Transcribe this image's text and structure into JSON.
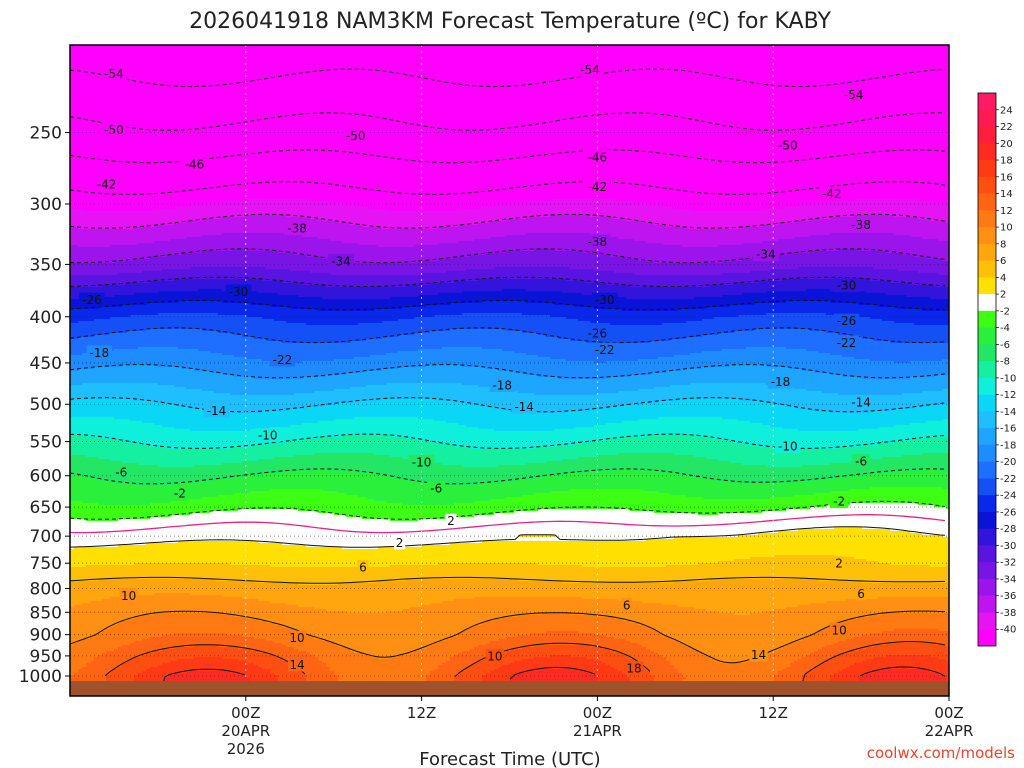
{
  "chart_data": {
    "type": "heatmap",
    "title": "2026041918 NAM3KM Forecast Temperature (ºC) for KABY",
    "xlabel": "Forecast Time (UTC)",
    "ylabel": "",
    "y_axis": {
      "scale": "log-pressure",
      "ylim_hPa": [
        1000,
        200
      ],
      "ticks": [
        "250",
        "300",
        "350",
        "400",
        "450",
        "500",
        "550",
        "600",
        "650",
        "700",
        "750",
        "800",
        "850",
        "900",
        "950",
        "1000"
      ]
    },
    "x_axis": {
      "xlim_hours": [
        -6,
        54
      ],
      "ticks": [
        {
          "hour": 6,
          "line1": "00Z",
          "line2": "20APR",
          "line3": "2026"
        },
        {
          "hour": 18,
          "line1": "12Z",
          "line2": "",
          "line3": ""
        },
        {
          "hour": 30,
          "line1": "00Z",
          "line2": "21APR",
          "line3": ""
        },
        {
          "hour": 42,
          "line1": "12Z",
          "line2": "",
          "line3": ""
        },
        {
          "hour": 54,
          "line1": "00Z",
          "line2": "22APR",
          "line3": ""
        }
      ]
    },
    "colorbar": {
      "labels": [
        "24",
        "22",
        "20",
        "18",
        "16",
        "14",
        "12",
        "10",
        "8",
        "6",
        "4",
        "2",
        "-2",
        "-4",
        "-6",
        "-8",
        "-10",
        "-12",
        "-14",
        "-16",
        "-18",
        "-20",
        "-22",
        "-24",
        "-26",
        "-28",
        "-30",
        "-32",
        "-34",
        "-36",
        "-38",
        "-40"
      ],
      "bands": [
        {
          "from": 24,
          "to": 26,
          "color": "#ff1a66"
        },
        {
          "from": 22,
          "to": 24,
          "color": "#ff1a52"
        },
        {
          "from": 20,
          "to": 22,
          "color": "#ff1e3c"
        },
        {
          "from": 18,
          "to": 20,
          "color": "#ff2a22"
        },
        {
          "from": 16,
          "to": 18,
          "color": "#ff3a14"
        },
        {
          "from": 14,
          "to": 16,
          "color": "#ff4e12"
        },
        {
          "from": 12,
          "to": 14,
          "color": "#ff6414"
        },
        {
          "from": 10,
          "to": 12,
          "color": "#ff7a12"
        },
        {
          "from": 8,
          "to": 10,
          "color": "#ff9014"
        },
        {
          "from": 6,
          "to": 8,
          "color": "#ffa60e"
        },
        {
          "from": 4,
          "to": 6,
          "color": "#ffc00a"
        },
        {
          "from": 2,
          "to": 4,
          "color": "#ffe000"
        },
        {
          "from": -2,
          "to": 2,
          "color": "#ffffff"
        },
        {
          "from": -4,
          "to": -2,
          "color": "#3cff14"
        },
        {
          "from": -6,
          "to": -4,
          "color": "#2af03c"
        },
        {
          "from": -8,
          "to": -6,
          "color": "#22e664"
        },
        {
          "from": -10,
          "to": -8,
          "color": "#14f0a0"
        },
        {
          "from": -12,
          "to": -10,
          "color": "#0ff0dc"
        },
        {
          "from": -14,
          "to": -12,
          "color": "#0ad7f5"
        },
        {
          "from": -16,
          "to": -14,
          "color": "#1ebeff"
        },
        {
          "from": -18,
          "to": -16,
          "color": "#1ea5ff"
        },
        {
          "from": -20,
          "to": -18,
          "color": "#1e8cff"
        },
        {
          "from": -22,
          "to": -20,
          "color": "#1e6eff"
        },
        {
          "from": -24,
          "to": -22,
          "color": "#1450f5"
        },
        {
          "from": -26,
          "to": -24,
          "color": "#0a28eb"
        },
        {
          "from": -28,
          "to": -26,
          "color": "#0a14d7"
        },
        {
          "from": -30,
          "to": -28,
          "color": "#3214dc"
        },
        {
          "from": -32,
          "to": -30,
          "color": "#5a14e1"
        },
        {
          "from": -34,
          "to": -32,
          "color": "#7814e6"
        },
        {
          "from": -36,
          "to": -34,
          "color": "#9b14eb"
        },
        {
          "from": -38,
          "to": -36,
          "color": "#be14f0"
        },
        {
          "from": -40,
          "to": -38,
          "color": "#e614f5"
        },
        {
          "from": -70,
          "to": -40,
          "color": "#ff00ff"
        }
      ]
    },
    "series": [
      {
        "name": "ground",
        "color": "#a0522d"
      },
      {
        "name": "freezing level (0ºC)",
        "color": "#e8228c"
      }
    ],
    "temperature_profile_C": [
      {
        "p": 1000,
        "t": 15
      },
      {
        "p": 950,
        "t": 13
      },
      {
        "p": 900,
        "t": 10.5
      },
      {
        "p": 850,
        "t": 9
      },
      {
        "p": 800,
        "t": 7
      },
      {
        "p": 750,
        "t": 4
      },
      {
        "p": 700,
        "t": 2
      },
      {
        "p": 650,
        "t": -2.5
      },
      {
        "p": 600,
        "t": -6
      },
      {
        "p": 550,
        "t": -10
      },
      {
        "p": 500,
        "t": -14
      },
      {
        "p": 450,
        "t": -19
      },
      {
        "p": 400,
        "t": -24
      },
      {
        "p": 350,
        "t": -33
      },
      {
        "p": 300,
        "t": -40
      },
      {
        "p": 250,
        "t": -49
      },
      {
        "p": 200,
        "t": -57
      }
    ],
    "diurnal_surface_amplitude_C": 4,
    "contour_labels": [
      {
        "hour": -3,
        "p": 215,
        "text": "-54"
      },
      {
        "hour": 29.5,
        "p": 213,
        "text": "-54"
      },
      {
        "hour": 47.5,
        "p": 227,
        "text": "-54"
      },
      {
        "hour": -3,
        "p": 248,
        "text": "-50"
      },
      {
        "hour": 13.5,
        "p": 252,
        "text": "-50"
      },
      {
        "hour": 43,
        "p": 258,
        "text": "-50"
      },
      {
        "hour": 2.5,
        "p": 271,
        "text": "-46"
      },
      {
        "hour": 30,
        "p": 266,
        "text": "-46"
      },
      {
        "hour": -3.5,
        "p": 285,
        "text": "-42"
      },
      {
        "hour": 30,
        "p": 287,
        "text": "-42"
      },
      {
        "hour": 46,
        "p": 292,
        "text": "-42"
      },
      {
        "hour": 9.5,
        "p": 319,
        "text": "-38"
      },
      {
        "hour": 30,
        "p": 330,
        "text": "-38"
      },
      {
        "hour": 48,
        "p": 316,
        "text": "-38"
      },
      {
        "hour": 12.5,
        "p": 347,
        "text": "-34"
      },
      {
        "hour": 41.5,
        "p": 341,
        "text": "-34"
      },
      {
        "hour": 5.5,
        "p": 375,
        "text": "-30"
      },
      {
        "hour": 30.5,
        "p": 383,
        "text": "-30"
      },
      {
        "hour": 47,
        "p": 369,
        "text": "-30"
      },
      {
        "hour": -4.5,
        "p": 383,
        "text": "-26"
      },
      {
        "hour": 30,
        "p": 417,
        "text": "-26"
      },
      {
        "hour": 47,
        "p": 404,
        "text": "-26"
      },
      {
        "hour": -4,
        "p": 438,
        "text": "-18"
      },
      {
        "hour": 8.5,
        "p": 446,
        "text": "-22"
      },
      {
        "hour": 30.5,
        "p": 435,
        "text": "-22"
      },
      {
        "hour": 47,
        "p": 427,
        "text": "-22"
      },
      {
        "hour": 23.5,
        "p": 476,
        "text": "-18"
      },
      {
        "hour": 42.5,
        "p": 472,
        "text": "-18"
      },
      {
        "hour": 4,
        "p": 508,
        "text": "-14"
      },
      {
        "hour": 25,
        "p": 503,
        "text": "-14"
      },
      {
        "hour": 48,
        "p": 497,
        "text": "-14"
      },
      {
        "hour": 7.5,
        "p": 541,
        "text": "-10"
      },
      {
        "hour": 18,
        "p": 579,
        "text": "-10"
      },
      {
        "hour": 43,
        "p": 556,
        "text": "-10"
      },
      {
        "hour": -2.5,
        "p": 594,
        "text": "-6"
      },
      {
        "hour": 19,
        "p": 619,
        "text": "-6"
      },
      {
        "hour": 48,
        "p": 578,
        "text": "-6"
      },
      {
        "hour": 1.5,
        "p": 627,
        "text": "-2"
      },
      {
        "hour": 46.5,
        "p": 640,
        "text": "-2"
      },
      {
        "hour": 20,
        "p": 673,
        "text": "2"
      },
      {
        "hour": 16.5,
        "p": 711,
        "text": "2"
      },
      {
        "hour": 46.5,
        "p": 750,
        "text": "2"
      },
      {
        "hour": 14,
        "p": 757,
        "text": "6"
      },
      {
        "hour": 32,
        "p": 834,
        "text": "6"
      },
      {
        "hour": 48,
        "p": 810,
        "text": "6"
      },
      {
        "hour": -2,
        "p": 814,
        "text": "10"
      },
      {
        "hour": 9.5,
        "p": 907,
        "text": "10"
      },
      {
        "hour": 23,
        "p": 950,
        "text": "10"
      },
      {
        "hour": 46.5,
        "p": 889,
        "text": "10"
      },
      {
        "hour": 9.5,
        "p": 971,
        "text": "14"
      },
      {
        "hour": 41,
        "p": 947,
        "text": "14"
      },
      {
        "hour": 32.5,
        "p": 980,
        "text": "18"
      }
    ],
    "annotations": [
      "coolwx.com/models"
    ]
  }
}
